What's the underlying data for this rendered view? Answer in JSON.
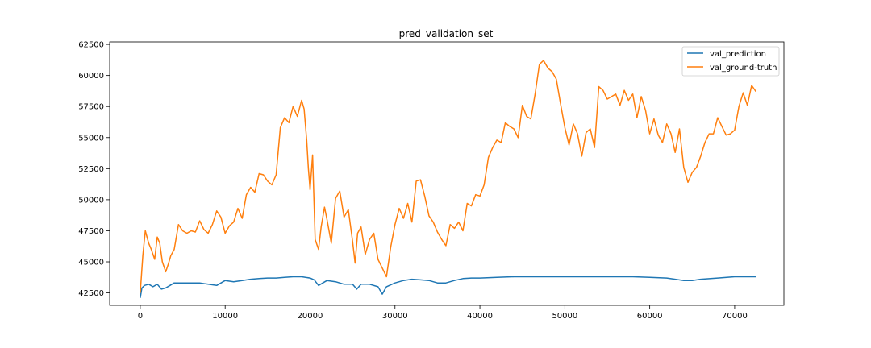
{
  "chart_data": {
    "type": "line",
    "title": "pred_validation_set",
    "xlabel": "",
    "ylabel": "",
    "xlim": [
      -3600,
      75800
    ],
    "ylim": [
      41500,
      62700
    ],
    "x_ticks": [
      0,
      10000,
      20000,
      30000,
      40000,
      50000,
      60000,
      70000
    ],
    "x_tick_labels": [
      "0",
      "10000",
      "20000",
      "30000",
      "40000",
      "50000",
      "60000",
      "70000"
    ],
    "y_ticks": [
      42500,
      45000,
      47500,
      50000,
      52500,
      55000,
      57500,
      60000,
      62500
    ],
    "y_tick_labels": [
      "42500",
      "45000",
      "47500",
      "50000",
      "52500",
      "55000",
      "57500",
      "60000",
      "62500"
    ],
    "grid": false,
    "legend": "top-right",
    "series": [
      {
        "name": "val_prediction",
        "color": "#1f77b4",
        "x": [
          0,
          200,
          500,
          1000,
          1500,
          2000,
          2500,
          3000,
          3500,
          4000,
          5000,
          6000,
          7000,
          8000,
          9000,
          10000,
          11000,
          12000,
          13000,
          14000,
          15000,
          16000,
          17000,
          18000,
          19000,
          20000,
          20500,
          21000,
          21500,
          22000,
          23000,
          24000,
          25000,
          25500,
          26000,
          27000,
          28000,
          28500,
          29000,
          30000,
          31000,
          32000,
          33000,
          34000,
          35000,
          36000,
          37000,
          38000,
          39000,
          40000,
          42000,
          44000,
          46000,
          48000,
          50000,
          52000,
          54000,
          56000,
          58000,
          60000,
          62000,
          63000,
          64000,
          65000,
          66000,
          68000,
          70000,
          72500
        ],
        "y": [
          42100,
          42900,
          43100,
          43200,
          43000,
          43200,
          42800,
          42900,
          43100,
          43300,
          43300,
          43300,
          43300,
          43200,
          43100,
          43500,
          43400,
          43500,
          43600,
          43650,
          43700,
          43700,
          43750,
          43800,
          43800,
          43700,
          43550,
          43100,
          43300,
          43500,
          43400,
          43200,
          43200,
          42800,
          43200,
          43200,
          43000,
          42400,
          43000,
          43300,
          43500,
          43600,
          43550,
          43500,
          43300,
          43300,
          43500,
          43650,
          43700,
          43700,
          43750,
          43800,
          43800,
          43800,
          43800,
          43800,
          43800,
          43800,
          43800,
          43750,
          43700,
          43600,
          43500,
          43500,
          43600,
          43700,
          43800,
          43800
        ]
      },
      {
        "name": "val_ground-truth",
        "color": "#ff7f0e",
        "x": [
          0,
          300,
          600,
          1000,
          1300,
          1700,
          2000,
          2300,
          2600,
          3000,
          3300,
          3600,
          4000,
          4500,
          5000,
          5500,
          6000,
          6500,
          7000,
          7500,
          8000,
          8500,
          9000,
          9500,
          10000,
          10500,
          11000,
          11500,
          12000,
          12500,
          13000,
          13500,
          14000,
          14500,
          15000,
          15500,
          16000,
          16500,
          17000,
          17500,
          18000,
          18500,
          19000,
          19300,
          19600,
          19800,
          20000,
          20300,
          20600,
          21000,
          21300,
          21700,
          22000,
          22500,
          23000,
          23500,
          24000,
          24500,
          25000,
          25300,
          25600,
          26000,
          26500,
          27000,
          27500,
          28000,
          28500,
          29000,
          29500,
          30000,
          30500,
          31000,
          31500,
          32000,
          32500,
          33000,
          33500,
          34000,
          34500,
          35000,
          35500,
          36000,
          36500,
          37000,
          37500,
          38000,
          38500,
          39000,
          39500,
          40000,
          40500,
          41000,
          41500,
          42000,
          42500,
          43000,
          43500,
          44000,
          44500,
          45000,
          45500,
          46000,
          46500,
          47000,
          47500,
          48000,
          48500,
          49000,
          49500,
          50000,
          50500,
          51000,
          51500,
          52000,
          52500,
          53000,
          53500,
          54000,
          54500,
          55000,
          55500,
          56000,
          56500,
          57000,
          57500,
          58000,
          58500,
          59000,
          59500,
          60000,
          60500,
          61000,
          61500,
          62000,
          62500,
          63000,
          63500,
          64000,
          64500,
          65000,
          65500,
          66000,
          66500,
          67000,
          67500,
          68000,
          68500,
          69000,
          69500,
          70000,
          70500,
          71000,
          71500,
          72000,
          72500
        ],
        "y": [
          42500,
          45500,
          47500,
          46500,
          46000,
          45200,
          47000,
          46500,
          45000,
          44200,
          44800,
          45500,
          46000,
          48000,
          47500,
          47300,
          47500,
          47400,
          48300,
          47600,
          47300,
          48000,
          49100,
          48600,
          47300,
          47900,
          48200,
          49300,
          48500,
          50400,
          51000,
          50600,
          52100,
          52000,
          51500,
          51200,
          52000,
          55800,
          56600,
          56200,
          57500,
          56700,
          58000,
          57300,
          54800,
          52500,
          50800,
          53600,
          46800,
          46000,
          47800,
          49400,
          48400,
          46500,
          50100,
          50700,
          48600,
          49200,
          46700,
          44900,
          47300,
          47800,
          45600,
          46800,
          47300,
          45200,
          44500,
          43800,
          46200,
          48000,
          49300,
          48500,
          49700,
          48200,
          51500,
          51600,
          50300,
          48700,
          48200,
          47400,
          46800,
          46300,
          48000,
          47700,
          48200,
          47500,
          49700,
          49500,
          50400,
          50300,
          51200,
          53400,
          54200,
          54800,
          54600,
          56200,
          55900,
          55700,
          55000,
          57600,
          56700,
          56500,
          58500,
          60900,
          61200,
          60600,
          60300,
          59700,
          57700,
          55800,
          54400,
          56100,
          55300,
          53500,
          55400,
          55700,
          54200,
          59100,
          58800,
          58100,
          58300,
          58500,
          57600,
          58800,
          58000,
          58500,
          56600,
          58300,
          57200,
          55300,
          56500,
          55200,
          54600,
          56100,
          55300,
          53800,
          55700,
          52600,
          51400,
          52200,
          52600,
          53500,
          54600,
          55300,
          55300,
          56600,
          55900,
          55200,
          55300,
          55600,
          57500,
          58600,
          57600,
          59200,
          58700
        ]
      }
    ]
  }
}
